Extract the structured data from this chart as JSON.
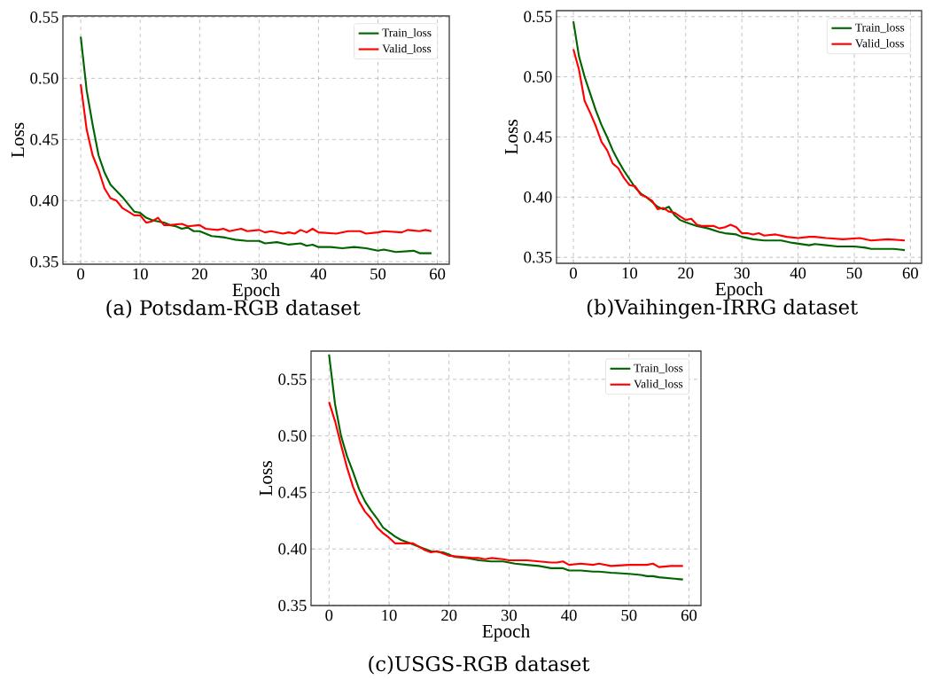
{
  "chart_data": [
    {
      "type": "line",
      "title": "(a) Potsdam-RGB dataset",
      "xlabel": "Epoch",
      "ylabel": "Loss",
      "xlim": [
        -3,
        62
      ],
      "ylim": [
        0.348,
        0.551
      ],
      "xticks": [
        0,
        10,
        20,
        30,
        40,
        50,
        60
      ],
      "yticks": [
        {
          "value": 0.35,
          "label": "0.35"
        },
        {
          "value": 0.4,
          "label": "0.40"
        },
        {
          "value": 0.45,
          "label": "0.45"
        },
        {
          "value": 0.5,
          "label": "0.50"
        },
        {
          "value": 0.55,
          "label": "0.55"
        }
      ],
      "grid": true,
      "legend": "top right",
      "series": [
        {
          "name": "Train_loss",
          "color": "#006400",
          "x": [
            0,
            1,
            2,
            3,
            4,
            5,
            6,
            7,
            8,
            9,
            10,
            11,
            12,
            13,
            14,
            15,
            16,
            17,
            18,
            19,
            20,
            22,
            24,
            26,
            28,
            30,
            31,
            33,
            35,
            37,
            38,
            39,
            40,
            42,
            44,
            46,
            48,
            50,
            51,
            53,
            56,
            57,
            59
          ],
          "values": [
            0.534,
            0.49,
            0.462,
            0.437,
            0.423,
            0.413,
            0.408,
            0.403,
            0.397,
            0.391,
            0.39,
            0.386,
            0.384,
            0.383,
            0.382,
            0.38,
            0.379,
            0.377,
            0.378,
            0.375,
            0.375,
            0.371,
            0.37,
            0.368,
            0.367,
            0.367,
            0.365,
            0.366,
            0.364,
            0.365,
            0.363,
            0.364,
            0.362,
            0.362,
            0.361,
            0.362,
            0.361,
            0.359,
            0.36,
            0.358,
            0.359,
            0.357,
            0.357
          ]
        },
        {
          "name": "Valid_loss",
          "color": "#ff0000",
          "x": [
            0,
            1,
            2,
            3,
            4,
            5,
            6,
            7,
            8,
            9,
            10,
            11,
            12,
            13,
            14,
            15,
            17,
            18,
            20,
            21,
            23,
            24,
            25,
            27,
            28,
            30,
            31,
            32,
            34,
            35,
            36,
            37,
            38,
            39,
            40,
            43,
            45,
            47,
            48,
            50,
            51,
            54,
            55,
            57,
            58,
            59
          ],
          "values": [
            0.495,
            0.458,
            0.437,
            0.425,
            0.41,
            0.402,
            0.4,
            0.394,
            0.391,
            0.388,
            0.388,
            0.382,
            0.383,
            0.386,
            0.38,
            0.38,
            0.381,
            0.379,
            0.38,
            0.377,
            0.376,
            0.377,
            0.375,
            0.377,
            0.375,
            0.376,
            0.374,
            0.375,
            0.373,
            0.374,
            0.373,
            0.376,
            0.374,
            0.377,
            0.374,
            0.373,
            0.375,
            0.375,
            0.373,
            0.374,
            0.375,
            0.374,
            0.376,
            0.375,
            0.376,
            0.375
          ]
        }
      ]
    },
    {
      "type": "line",
      "title": "(b)Vaihingen-IRRG dataset",
      "xlabel": "Epoch",
      "ylabel": "Loss",
      "xlim": [
        -3,
        62
      ],
      "ylim": [
        0.345,
        0.555
      ],
      "xticks": [
        0,
        10,
        20,
        30,
        40,
        50,
        60
      ],
      "yticks": [
        {
          "value": 0.35,
          "label": "0.35"
        },
        {
          "value": 0.4,
          "label": "0.40"
        },
        {
          "value": 0.45,
          "label": "0.45"
        },
        {
          "value": 0.5,
          "label": "0.50"
        },
        {
          "value": 0.55,
          "label": "0.55"
        }
      ],
      "grid": true,
      "legend": "top right",
      "series": [
        {
          "name": "Train_loss",
          "color": "#006400",
          "x": [
            0,
            1,
            2,
            3,
            4,
            5,
            6,
            7,
            8,
            9,
            10,
            11,
            12,
            13,
            14,
            15,
            16,
            17,
            18,
            19,
            20,
            22,
            24,
            26,
            27,
            29,
            30,
            32,
            34,
            37,
            39,
            42,
            43,
            45,
            47,
            50,
            52,
            53,
            57,
            59
          ],
          "values": [
            0.546,
            0.517,
            0.5,
            0.486,
            0.472,
            0.46,
            0.45,
            0.439,
            0.43,
            0.422,
            0.415,
            0.408,
            0.403,
            0.4,
            0.396,
            0.392,
            0.39,
            0.392,
            0.385,
            0.381,
            0.379,
            0.376,
            0.374,
            0.371,
            0.37,
            0.369,
            0.367,
            0.365,
            0.364,
            0.364,
            0.362,
            0.36,
            0.361,
            0.36,
            0.359,
            0.359,
            0.358,
            0.357,
            0.357,
            0.356
          ]
        },
        {
          "name": "Valid_loss",
          "color": "#ff0000",
          "x": [
            0,
            1,
            2,
            3,
            4,
            5,
            6,
            7,
            8,
            9,
            10,
            11,
            12,
            13,
            14,
            15,
            16,
            17,
            18,
            19,
            20,
            21,
            22,
            23,
            25,
            26,
            27,
            28,
            29,
            30,
            31,
            32,
            33,
            34,
            36,
            38,
            40,
            42,
            43,
            45,
            48,
            51,
            53,
            56,
            59
          ],
          "values": [
            0.523,
            0.506,
            0.48,
            0.47,
            0.459,
            0.446,
            0.439,
            0.428,
            0.424,
            0.416,
            0.41,
            0.409,
            0.402,
            0.4,
            0.397,
            0.39,
            0.391,
            0.388,
            0.387,
            0.384,
            0.381,
            0.382,
            0.377,
            0.376,
            0.376,
            0.374,
            0.375,
            0.377,
            0.375,
            0.37,
            0.37,
            0.369,
            0.37,
            0.368,
            0.369,
            0.367,
            0.366,
            0.367,
            0.367,
            0.366,
            0.365,
            0.366,
            0.364,
            0.365,
            0.364
          ]
        }
      ]
    },
    {
      "type": "line",
      "title": "(c)USGS-RGB dataset",
      "xlabel": "Epoch",
      "ylabel": "Loss",
      "xlim": [
        -3,
        62
      ],
      "ylim": [
        0.35,
        0.575
      ],
      "xticks": [
        0,
        10,
        20,
        30,
        40,
        50,
        60
      ],
      "yticks": [
        {
          "value": 0.35,
          "label": "0.35"
        },
        {
          "value": 0.4,
          "label": "0.40"
        },
        {
          "value": 0.45,
          "label": "0.45"
        },
        {
          "value": 0.5,
          "label": "0.50"
        },
        {
          "value": 0.55,
          "label": "0.55"
        }
      ],
      "grid": true,
      "legend": "top right",
      "series": [
        {
          "name": "Train_loss",
          "color": "#006400",
          "x": [
            0,
            1,
            2,
            3,
            4,
            5,
            6,
            7,
            8,
            9,
            10,
            11,
            12,
            13,
            14,
            15,
            16,
            17,
            19,
            20,
            21,
            23,
            25,
            27,
            29,
            31,
            33,
            35,
            37,
            39,
            40,
            42,
            44,
            45,
            47,
            50,
            52,
            53,
            54,
            55,
            57,
            59
          ],
          "values": [
            0.572,
            0.528,
            0.5,
            0.482,
            0.468,
            0.453,
            0.442,
            0.434,
            0.427,
            0.419,
            0.415,
            0.411,
            0.408,
            0.406,
            0.404,
            0.402,
            0.4,
            0.398,
            0.397,
            0.395,
            0.393,
            0.392,
            0.39,
            0.389,
            0.389,
            0.387,
            0.386,
            0.385,
            0.383,
            0.383,
            0.381,
            0.381,
            0.38,
            0.38,
            0.379,
            0.378,
            0.377,
            0.376,
            0.376,
            0.375,
            0.374,
            0.373
          ]
        },
        {
          "name": "Valid_loss",
          "color": "#ff0000",
          "x": [
            0,
            1,
            2,
            3,
            4,
            5,
            6,
            7,
            8,
            9,
            10,
            11,
            12,
            14,
            15,
            16,
            17,
            18,
            19,
            20,
            22,
            24,
            25,
            26,
            27,
            29,
            30,
            33,
            35,
            37,
            38,
            39,
            40,
            42,
            44,
            45,
            47,
            50,
            53,
            54,
            55,
            57,
            59
          ],
          "values": [
            0.53,
            0.513,
            0.492,
            0.472,
            0.455,
            0.442,
            0.433,
            0.427,
            0.419,
            0.414,
            0.41,
            0.405,
            0.405,
            0.405,
            0.402,
            0.399,
            0.397,
            0.398,
            0.396,
            0.394,
            0.393,
            0.392,
            0.392,
            0.391,
            0.392,
            0.391,
            0.39,
            0.39,
            0.389,
            0.388,
            0.388,
            0.389,
            0.386,
            0.387,
            0.386,
            0.387,
            0.385,
            0.386,
            0.386,
            0.387,
            0.384,
            0.385,
            0.385
          ]
        }
      ]
    }
  ]
}
